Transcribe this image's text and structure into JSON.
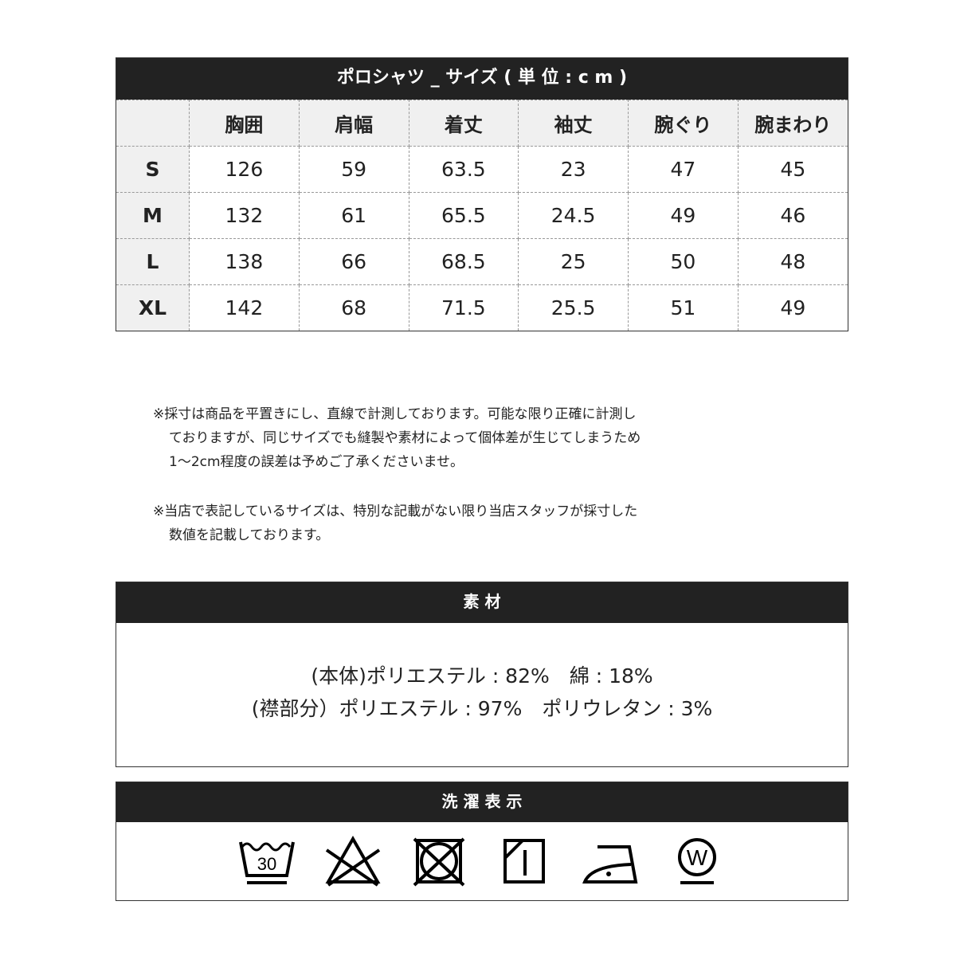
{
  "size_table": {
    "title": "ポロシャツ _ サイズ ( 単 位 : c m )",
    "headers": [
      "",
      "胸囲",
      "肩幅",
      "着丈",
      "袖丈",
      "腕ぐり",
      "腕まわり"
    ],
    "rows": [
      [
        "S",
        "126",
        "59",
        "63.5",
        "23",
        "47",
        "45"
      ],
      [
        "M",
        "132",
        "61",
        "65.5",
        "24.5",
        "49",
        "46"
      ],
      [
        "L",
        "138",
        "66",
        "68.5",
        "25",
        "50",
        "48"
      ],
      [
        "XL",
        "142",
        "68",
        "71.5",
        "25.5",
        "51",
        "49"
      ]
    ]
  },
  "notes": [
    [
      "※採寸は商品を平置きにし、直線で計測しております。可能な限り正確に計測し",
      "ておりますが、同じサイズでも縫製や素材によって個体差が生じてしまうため",
      "1～2cm程度の誤差は予めご了承くださいませ。"
    ],
    [
      "※当店で表記しているサイズは、特別な記載がない限り当店スタッフが採寸した",
      "数値を記載しております。"
    ]
  ],
  "material": {
    "title": "素 材",
    "lines": [
      "(本体)ポリエステル : 82%　綿 : 18%",
      "(襟部分）ポリエステル : 97%　ポリウレタン : 3%"
    ]
  },
  "care": {
    "title": "洗 濯 表 示",
    "icons": [
      "wash-30-gentle-icon",
      "no-bleach-icon",
      "no-tumble-dry-icon",
      "shade-drip-dry-icon",
      "iron-low-icon",
      "wet-clean-gentle-icon"
    ],
    "wash_temp": "30",
    "wet_letter": "W"
  }
}
